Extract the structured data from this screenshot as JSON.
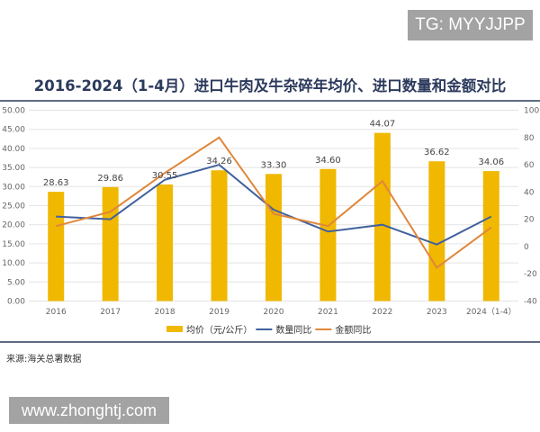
{
  "watermark_top": "TG: MYYJJPP",
  "watermark_bottom": "www.zhonghtj.com",
  "source": "来源:海关总署数据",
  "chart_data": {
    "type": "bar+line",
    "title": "2016-2024（1-4月）进口牛肉及牛杂碎年均价、进口数量和金额对比",
    "categories": [
      "2016",
      "2017",
      "2018",
      "2019",
      "2020",
      "2021",
      "2022",
      "2023",
      "2024（1-4）"
    ],
    "left_axis": {
      "ylim": [
        0,
        50
      ],
      "ticks": [
        "0.00",
        "5.00",
        "10.00",
        "15.00",
        "20.00",
        "25.00",
        "30.00",
        "35.00",
        "40.00",
        "45.00",
        "50.00"
      ]
    },
    "right_axis": {
      "ylim": [
        -40,
        100
      ],
      "ticks": [
        "-40",
        "-20",
        "0",
        "20",
        "40",
        "60",
        "80",
        "100"
      ]
    },
    "grid": true,
    "legend_position": "bottom",
    "series": [
      {
        "name": "均价（元/公斤）",
        "type": "bar",
        "axis": "left",
        "color": "#f0b800",
        "values": [
          28.63,
          29.86,
          30.55,
          34.26,
          33.3,
          34.6,
          44.07,
          36.62,
          34.06
        ],
        "labels": [
          "28.63",
          "29.86",
          "30.55",
          "34.26",
          "33.30",
          "34.60",
          "44.07",
          "36.62",
          "34.06"
        ]
      },
      {
        "name": "数量同比",
        "type": "line",
        "axis": "right",
        "color": "#41619e",
        "values": [
          22,
          20,
          49,
          60,
          27,
          11,
          16,
          1.5,
          22
        ]
      },
      {
        "name": "金额同比",
        "type": "line",
        "axis": "right",
        "color": "#e0873a",
        "values": [
          15,
          25.5,
          54,
          80,
          24,
          15,
          48,
          -15.5,
          14
        ]
      }
    ]
  }
}
